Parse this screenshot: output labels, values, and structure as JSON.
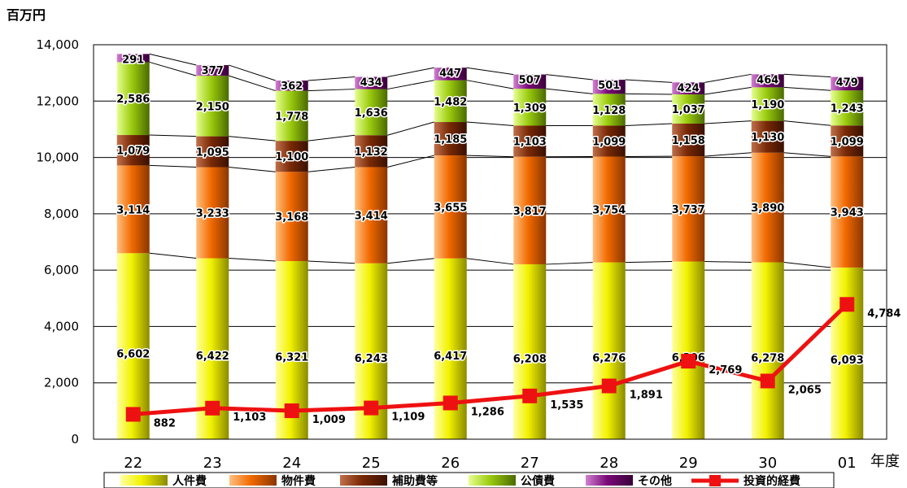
{
  "chart_data": {
    "type": "bar",
    "stacked": true,
    "unit_label": "百万円",
    "xlabel": "年度",
    "ylabel": "",
    "ylim": [
      0,
      14000
    ],
    "yticks": [
      "0",
      "2,000",
      "4,000",
      "6,000",
      "8,000",
      "10,000",
      "12,000",
      "14,000"
    ],
    "categories": [
      "22",
      "23",
      "24",
      "25",
      "26",
      "27",
      "28",
      "29",
      "30",
      "01"
    ],
    "grid": true,
    "legend_position": "bottom",
    "series": [
      {
        "name": "人件費",
        "color": "#f2f200",
        "values": [
          6602,
          6422,
          6321,
          6243,
          6417,
          6208,
          6276,
          6306,
          6278,
          6093
        ]
      },
      {
        "name": "物件費",
        "color": "#f26a00",
        "values": [
          3114,
          3233,
          3168,
          3414,
          3655,
          3817,
          3754,
          3737,
          3890,
          3943
        ]
      },
      {
        "name": "補助費等",
        "color": "#7a2a06",
        "values": [
          1079,
          1095,
          1100,
          1132,
          1185,
          1103,
          1099,
          1158,
          1130,
          1099
        ]
      },
      {
        "name": "公債費",
        "color": "#9ccc10",
        "values": [
          2586,
          2150,
          1778,
          1636,
          1482,
          1309,
          1128,
          1037,
          1190,
          1243
        ]
      },
      {
        "name": "その他",
        "color": "#7a0a78",
        "values": [
          291,
          377,
          362,
          434,
          447,
          507,
          501,
          424,
          464,
          479
        ]
      }
    ],
    "line_series": {
      "name": "投資的経費",
      "color": "#ee1111",
      "values": [
        882,
        1103,
        1009,
        1109,
        1286,
        1535,
        1891,
        2769,
        2065,
        4784
      ]
    },
    "value_labels": {
      "stack": [
        [
          "6,602",
          "3,114",
          "1,079",
          "2,586",
          "291"
        ],
        [
          "6,422",
          "3,233",
          "1,095",
          "2,150",
          "377"
        ],
        [
          "6,321",
          "3,168",
          "1,100",
          "1,778",
          "362"
        ],
        [
          "6,243",
          "3,414",
          "1,132",
          "1,636",
          "434"
        ],
        [
          "6,417",
          "3,655",
          "1,185",
          "1,482",
          "447"
        ],
        [
          "6,208",
          "3,817",
          "1,103",
          "1,309",
          "507"
        ],
        [
          "6,276",
          "3,754",
          "1,099",
          "1,128",
          "501"
        ],
        [
          "6,306",
          "3,737",
          "1,158",
          "1,037",
          "424"
        ],
        [
          "6,278",
          "3,890",
          "1,130",
          "1,190",
          "464"
        ],
        [
          "6,093",
          "3,943",
          "1,099",
          "1,243",
          "479"
        ]
      ],
      "line": [
        "882",
        "1,103",
        "1,009",
        "1,109",
        "1,286",
        "1,535",
        "1,891",
        "2,769",
        "2,065",
        "4,784"
      ]
    }
  }
}
